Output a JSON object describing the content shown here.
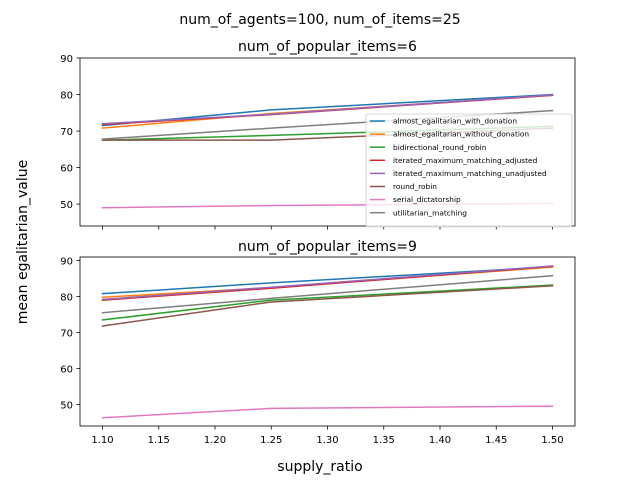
{
  "figure": {
    "suptitle": "num_of_agents=100, num_of_items=25",
    "supxlabel": "supply_ratio",
    "supylabel": "mean egalitarian_value"
  },
  "chart_data": [
    {
      "type": "line",
      "title": "num_of_popular_items=6",
      "xlabel": "",
      "ylabel": "",
      "x": [
        1.1,
        1.25,
        1.5
      ],
      "xlim": [
        1.08,
        1.52
      ],
      "ylim": [
        44,
        90
      ],
      "yticks": [
        50,
        60,
        70,
        80,
        90
      ],
      "xticks": [
        1.1,
        1.15,
        1.2,
        1.25,
        1.3,
        1.35,
        1.4,
        1.45,
        1.5
      ],
      "show_xtick_labels": false,
      "grid": false,
      "legend": "center-right",
      "series": [
        {
          "name": "almost_egalitarian_with_donation",
          "color": "#1f77b4",
          "values": [
            71.5,
            75.8,
            80.0
          ]
        },
        {
          "name": "almost_egalitarian_without_donation",
          "color": "#ff7f0e",
          "values": [
            70.8,
            74.8,
            79.8
          ]
        },
        {
          "name": "bidirectional_round_robin",
          "color": "#2ca02c",
          "values": [
            67.5,
            68.8,
            71.3
          ]
        },
        {
          "name": "iterated_maximum_matching_adjusted",
          "color": "#d62728",
          "values": [
            71.8,
            74.5,
            79.8
          ]
        },
        {
          "name": "iterated_maximum_matching_unadjusted",
          "color": "#9467bd",
          "values": [
            72.0,
            74.6,
            79.9
          ]
        },
        {
          "name": "round_robin",
          "color": "#8c564b",
          "values": [
            67.5,
            67.5,
            70.8
          ]
        },
        {
          "name": "serial_dictatorship",
          "color": "#e377c2",
          "values": [
            49.0,
            49.6,
            50.2
          ]
        },
        {
          "name": "utilitarian_matching",
          "color": "#7f7f7f",
          "values": [
            67.8,
            70.8,
            75.6
          ]
        }
      ]
    },
    {
      "type": "line",
      "title": "num_of_popular_items=9",
      "xlabel": "",
      "ylabel": "",
      "x": [
        1.1,
        1.25,
        1.5
      ],
      "xlim": [
        1.08,
        1.52
      ],
      "ylim": [
        44,
        91
      ],
      "yticks": [
        50,
        60,
        70,
        80,
        90
      ],
      "xticks": [
        1.1,
        1.15,
        1.2,
        1.25,
        1.3,
        1.35,
        1.4,
        1.45,
        1.5
      ],
      "xtick_labels": [
        "1.10",
        "1.15",
        "1.20",
        "1.25",
        "1.30",
        "1.35",
        "1.40",
        "1.45",
        "1.50"
      ],
      "show_xtick_labels": true,
      "grid": false,
      "series": [
        {
          "name": "almost_egalitarian_with_donation",
          "color": "#1f77b4",
          "values": [
            80.8,
            83.8,
            88.3
          ]
        },
        {
          "name": "almost_egalitarian_without_donation",
          "color": "#ff7f0e",
          "values": [
            79.8,
            82.5,
            88.2
          ]
        },
        {
          "name": "bidirectional_round_robin",
          "color": "#2ca02c",
          "values": [
            73.5,
            79.0,
            83.2
          ]
        },
        {
          "name": "iterated_maximum_matching_adjusted",
          "color": "#d62728",
          "values": [
            79.0,
            82.3,
            88.4
          ]
        },
        {
          "name": "iterated_maximum_matching_unadjusted",
          "color": "#9467bd",
          "values": [
            79.2,
            82.6,
            88.5
          ]
        },
        {
          "name": "round_robin",
          "color": "#8c564b",
          "values": [
            71.8,
            78.5,
            83.0
          ]
        },
        {
          "name": "serial_dictatorship",
          "color": "#e377c2",
          "values": [
            46.3,
            48.9,
            49.5
          ]
        },
        {
          "name": "utilitarian_matching",
          "color": "#7f7f7f",
          "values": [
            75.5,
            79.5,
            85.8
          ]
        }
      ]
    }
  ]
}
